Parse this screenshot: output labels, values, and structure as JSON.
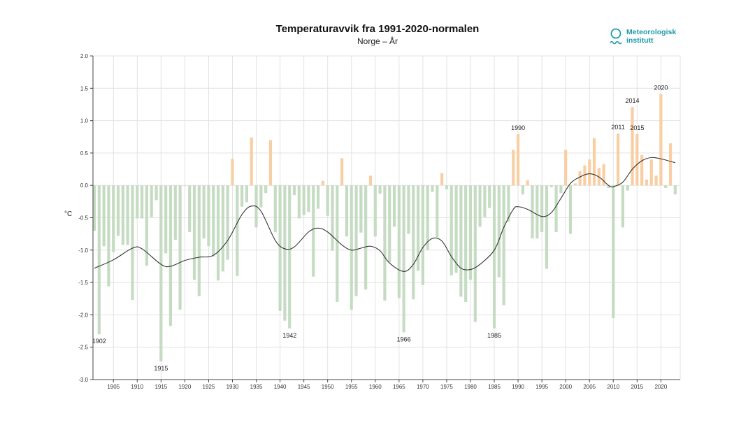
{
  "header": {
    "title": "Temperaturavvik fra 1991-2020-normalen",
    "subtitle": "Norge – År"
  },
  "logo": {
    "line1": "Meteorologisk",
    "line2": "institutt"
  },
  "chart_data": {
    "type": "bar",
    "title": "Temperaturavvik fra 1991-2020-normalen",
    "subtitle": "Norge – År",
    "ylabel": "°C",
    "xlabel": "",
    "ylim": [
      -3.0,
      2.0
    ],
    "yticks": [
      "2.0",
      "1.5",
      "1.0",
      "0.5",
      "0.0",
      "-0.5",
      "-1.0",
      "-1.5",
      "-2.0",
      "-2.5",
      "-3.0"
    ],
    "xticks": [
      "1905",
      "1910",
      "1915",
      "1920",
      "1925",
      "1930",
      "1935",
      "1940",
      "1945",
      "1950",
      "1955",
      "1960",
      "1965",
      "1970",
      "1975",
      "1980",
      "1985",
      "1990",
      "1995",
      "2000",
      "2005",
      "2010",
      "2015",
      "2020"
    ],
    "grid": true,
    "colors": {
      "positive": "#f8cfa4",
      "negative": "#c5dcc3",
      "smooth": "#333333"
    },
    "start_year": 1901,
    "values": [
      -0.7,
      -2.3,
      -0.94,
      -1.56,
      -1.03,
      -0.78,
      -0.92,
      -0.92,
      -1.77,
      -0.51,
      -0.51,
      -1.24,
      -0.49,
      -0.23,
      -2.72,
      -1.05,
      -2.17,
      -0.84,
      -1.92,
      -0.01,
      -0.72,
      -1.46,
      -1.71,
      -0.82,
      -0.94,
      -1.1,
      -1.47,
      -1.33,
      -1.15,
      0.41,
      -1.4,
      -0.33,
      -0.26,
      0.74,
      -0.65,
      -0.34,
      -0.12,
      0.7,
      -0.72,
      -1.94,
      -2.09,
      -2.21,
      -0.15,
      -0.51,
      -0.46,
      -0.41,
      -1.41,
      -0.36,
      0.07,
      -0.47,
      -1.01,
      -1.8,
      0.42,
      -0.79,
      -1.92,
      -1.71,
      -0.73,
      -1.61,
      0.15,
      -0.79,
      -0.13,
      -1.78,
      -1.19,
      -0.64,
      -1.74,
      -2.27,
      -0.75,
      -1.76,
      -1.32,
      -1.54,
      -1.0,
      -0.1,
      -0.8,
      0.19,
      -0.06,
      -1.39,
      -1.35,
      -1.72,
      -1.8,
      -1.46,
      -2.11,
      -0.64,
      -0.49,
      -0.35,
      -2.21,
      -1.42,
      -1.85,
      -0.56,
      0.55,
      0.79,
      -0.14,
      0.08,
      -0.82,
      -0.82,
      -0.72,
      -1.29,
      -0.03,
      -0.72,
      -0.12,
      0.55,
      -0.75,
      0.03,
      0.22,
      0.31,
      0.4,
      0.73,
      0.27,
      0.33,
      -0.04,
      -2.05,
      0.8,
      -0.65,
      -0.08,
      1.21,
      0.79,
      0.47,
      0.09,
      0.4,
      0.15,
      1.41,
      -0.04,
      0.65,
      -0.14
    ],
    "annotations": [
      {
        "year": 1902,
        "label": "1902"
      },
      {
        "year": 1915,
        "label": "1915"
      },
      {
        "year": 1942,
        "label": "1942"
      },
      {
        "year": 1966,
        "label": "1966"
      },
      {
        "year": 1985,
        "label": "1985"
      },
      {
        "year": 1990,
        "label": "1990"
      },
      {
        "year": 2011,
        "label": "2011"
      },
      {
        "year": 2014,
        "label": "2014"
      },
      {
        "year": 2015,
        "label": "2015"
      },
      {
        "year": 2020,
        "label": "2020"
      }
    ],
    "smoothed": [
      [
        1901,
        -1.28
      ],
      [
        1905,
        -1.15
      ],
      [
        1909,
        -0.97
      ],
      [
        1911,
        -0.98
      ],
      [
        1915,
        -1.22
      ],
      [
        1917,
        -1.25
      ],
      [
        1920,
        -1.16
      ],
      [
        1923,
        -1.11
      ],
      [
        1926,
        -1.08
      ],
      [
        1929,
        -0.85
      ],
      [
        1932,
        -0.45
      ],
      [
        1934,
        -0.32
      ],
      [
        1936,
        -0.4
      ],
      [
        1939,
        -0.85
      ],
      [
        1941,
        -0.98
      ],
      [
        1943,
        -0.95
      ],
      [
        1946,
        -0.72
      ],
      [
        1948,
        -0.66
      ],
      [
        1950,
        -0.72
      ],
      [
        1953,
        -0.92
      ],
      [
        1955,
        -1.0
      ],
      [
        1957,
        -0.97
      ],
      [
        1959,
        -0.94
      ],
      [
        1961,
        -1.01
      ],
      [
        1963,
        -1.2
      ],
      [
        1966,
        -1.33
      ],
      [
        1968,
        -1.22
      ],
      [
        1970,
        -0.96
      ],
      [
        1972,
        -0.82
      ],
      [
        1974,
        -0.86
      ],
      [
        1976,
        -1.1
      ],
      [
        1978,
        -1.28
      ],
      [
        1980,
        -1.3
      ],
      [
        1982,
        -1.22
      ],
      [
        1985,
        -1.0
      ],
      [
        1987,
        -0.65
      ],
      [
        1989,
        -0.37
      ],
      [
        1990,
        -0.33
      ],
      [
        1992,
        -0.37
      ],
      [
        1995,
        -0.48
      ],
      [
        1997,
        -0.42
      ],
      [
        1999,
        -0.2
      ],
      [
        2001,
        0.03
      ],
      [
        2003,
        0.13
      ],
      [
        2005,
        0.18
      ],
      [
        2007,
        0.13
      ],
      [
        2009,
        0.0
      ],
      [
        2010,
        -0.02
      ],
      [
        2012,
        0.05
      ],
      [
        2014,
        0.25
      ],
      [
        2016,
        0.38
      ],
      [
        2018,
        0.43
      ],
      [
        2020,
        0.41
      ],
      [
        2023,
        0.35
      ]
    ]
  }
}
